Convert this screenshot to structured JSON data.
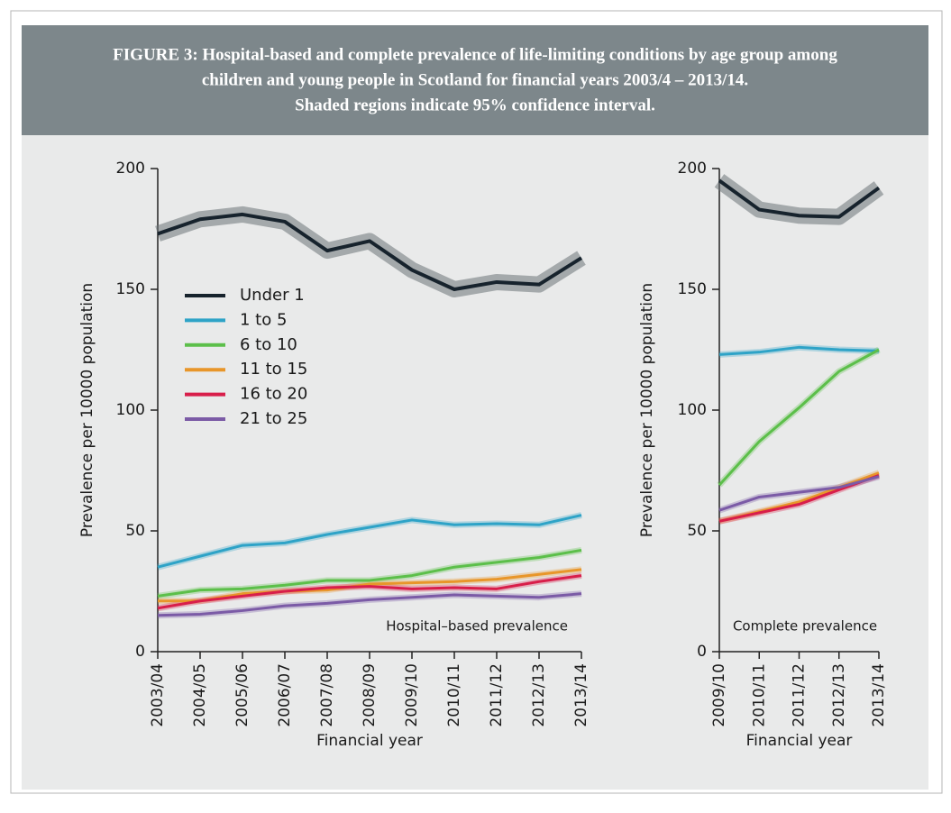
{
  "title": [
    "FIGURE 3: Hospital-based and complete prevalence of life-limiting conditions by age group among",
    "children and young people in Scotland for financial years 2003/4 – 2013/14."
  ],
  "subtitle": "Shaded regions indicate 95% confidence interval.",
  "chart_data": [
    {
      "type": "line",
      "annotation": "Hospital–based prevalence",
      "xlabel": "Financial year",
      "ylabel": "Prevalence per 10000 population",
      "x": [
        "2003/04",
        "2004/05",
        "2005/06",
        "2006/07",
        "2007/08",
        "2008/09",
        "2009/10",
        "2010/11",
        "2011/12",
        "2012/13",
        "2013/14"
      ],
      "ylim": [
        0,
        200
      ],
      "yticks": [
        0,
        50,
        100,
        150,
        200
      ],
      "series": [
        {
          "name": "Under 1",
          "color": "#17232d",
          "values": [
            173,
            179,
            181,
            178,
            166,
            170,
            158,
            150,
            153,
            152,
            163
          ]
        },
        {
          "name": "1 to 5",
          "color": "#2ea3c7",
          "values": [
            35,
            39.5,
            44,
            45,
            48.5,
            51.5,
            54.5,
            52.5,
            53,
            52.5,
            56.5
          ]
        },
        {
          "name": "6 to 10",
          "color": "#5cbf4a",
          "values": [
            23,
            25.5,
            26,
            27.5,
            29.5,
            29.5,
            31.5,
            35,
            37,
            39,
            42
          ]
        },
        {
          "name": "11 to 15",
          "color": "#e8962a",
          "values": [
            21,
            21,
            24,
            25,
            25.5,
            28,
            28.5,
            29,
            30,
            32,
            34
          ]
        },
        {
          "name": "16 to 20",
          "color": "#d81e4a",
          "values": [
            18,
            21,
            23,
            25,
            26.5,
            27,
            26,
            26.5,
            26,
            29,
            31.5
          ]
        },
        {
          "name": "21 to 25",
          "color": "#7b5ba6",
          "values": [
            15,
            15.5,
            17,
            19,
            20,
            21.5,
            22.5,
            23.5,
            23,
            22.5,
            24
          ]
        }
      ]
    },
    {
      "type": "line",
      "annotation": "Complete prevalence",
      "xlabel": "Financial year",
      "ylabel": "Prevalence per 10000 population",
      "x": [
        "2009/10",
        "2010/11",
        "2011/12",
        "2012/13",
        "2013/14"
      ],
      "ylim": [
        0,
        200
      ],
      "yticks": [
        0,
        50,
        100,
        150,
        200
      ],
      "series": [
        {
          "color": "#17232d",
          "values": [
            195,
            183,
            180.5,
            180,
            192
          ]
        },
        {
          "color": "#2ea3c7",
          "values": [
            123,
            124,
            126,
            125,
            124.5
          ]
        },
        {
          "color": "#5cbf4a",
          "values": [
            69,
            87,
            101,
            116,
            125
          ]
        },
        {
          "color": "#e8962a",
          "values": [
            54,
            58,
            62,
            68,
            74
          ]
        },
        {
          "color": "#d81e4a",
          "values": [
            54,
            57.5,
            61,
            67,
            73
          ]
        },
        {
          "color": "#7b5ba6",
          "values": [
            58.5,
            64,
            66,
            68,
            72.5
          ]
        }
      ]
    }
  ]
}
